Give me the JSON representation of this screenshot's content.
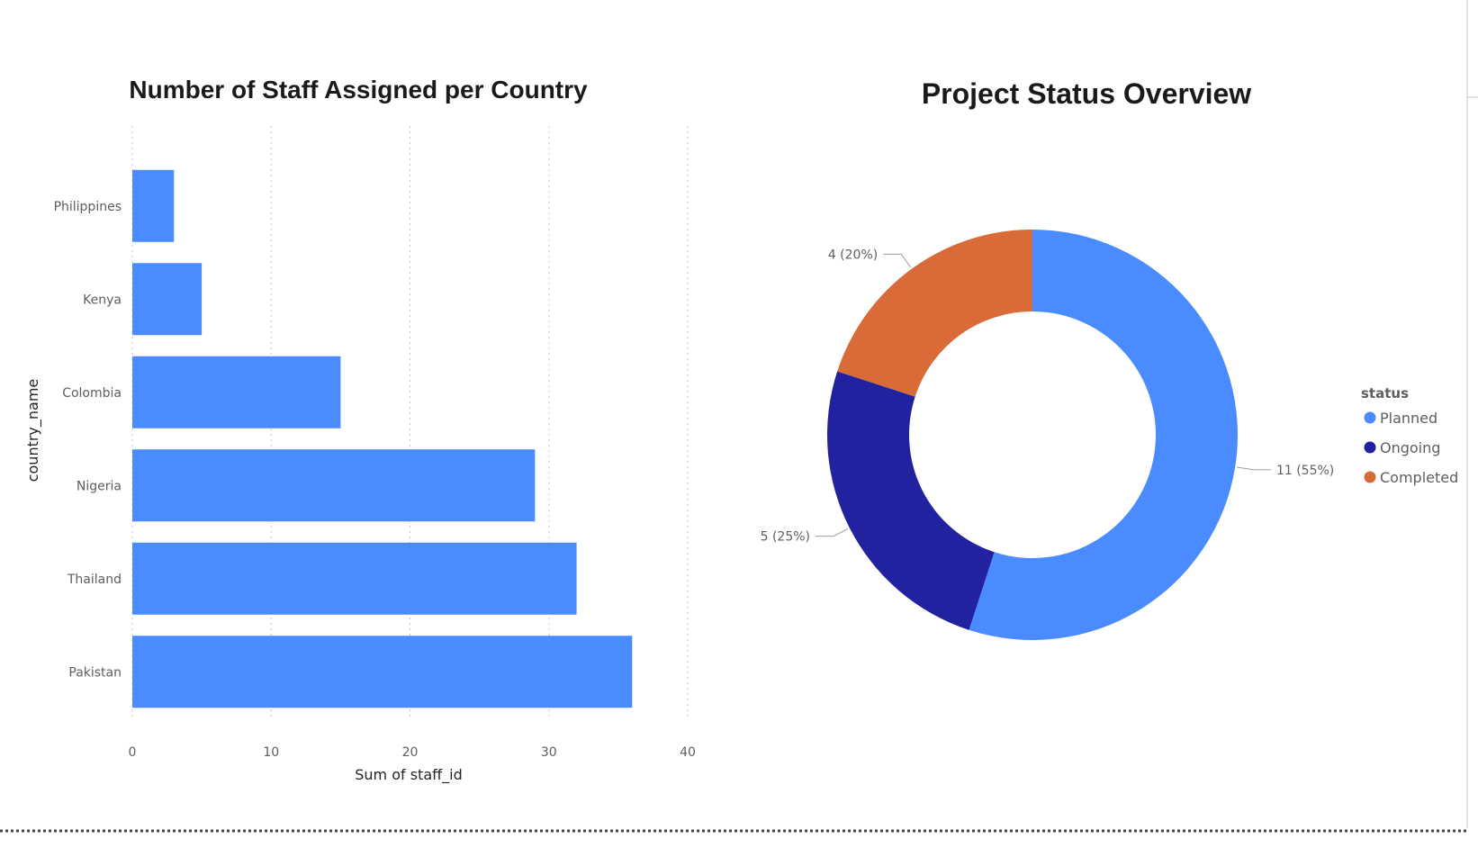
{
  "colors": {
    "bar": "#4a8cff",
    "planned": "#4a8cff",
    "ongoing": "#2222a0",
    "completed": "#d96b38"
  },
  "chart_data": [
    {
      "type": "bar",
      "orientation": "horizontal",
      "title": "Number of Staff Assigned per Country",
      "xlabel": "Sum of staff_id",
      "ylabel": "country_name",
      "categories": [
        "Philippines",
        "Kenya",
        "Colombia",
        "Nigeria",
        "Thailand",
        "Pakistan"
      ],
      "values": [
        3,
        5,
        15,
        29,
        32,
        36
      ],
      "xlim": [
        0,
        40
      ],
      "xticks": [
        0,
        10,
        20,
        30,
        40
      ],
      "grid": true
    },
    {
      "type": "pie",
      "style": "donut",
      "title": "Project Status Overview",
      "legend_title": "status",
      "legend_position": "right",
      "slices": [
        {
          "label": "Planned",
          "value": 11,
          "data_label": "11 (55%)",
          "color_key": "planned"
        },
        {
          "label": "Ongoing",
          "value": 5,
          "data_label": "5 (25%)",
          "color_key": "ongoing"
        },
        {
          "label": "Completed",
          "value": 4,
          "data_label": "4 (20%)",
          "color_key": "completed"
        }
      ]
    }
  ]
}
